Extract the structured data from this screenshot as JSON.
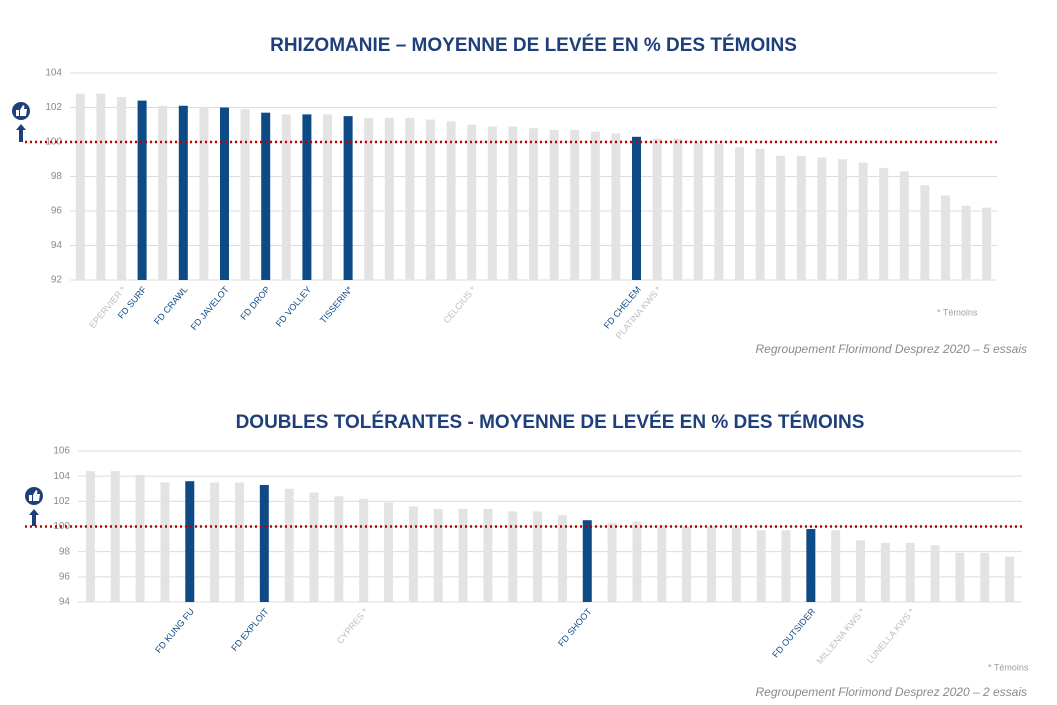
{
  "chart_data": [
    {
      "type": "bar",
      "title": "RHIZOMANIE – MOYENNE DE LEVÉE EN % DES TÉMOINS",
      "categories": [
        null,
        null,
        "EPERVIER *",
        "FD SURF",
        null,
        "FD CRAWL",
        null,
        "FD JAVELOT",
        null,
        "FD DROP",
        null,
        "FD VOLLEY",
        null,
        "TISSERIN*",
        null,
        null,
        null,
        null,
        null,
        "CELCIUS *",
        null,
        null,
        null,
        null,
        null,
        null,
        null,
        "FD CHELEM",
        "PLATINA KWS *",
        null,
        null,
        null,
        null,
        null,
        null,
        null,
        null,
        null,
        null,
        null,
        null,
        null,
        null,
        null,
        null
      ],
      "values": [
        102.8,
        102.8,
        102.6,
        102.4,
        102.1,
        102.1,
        102.0,
        102.0,
        101.9,
        101.7,
        101.6,
        101.6,
        101.6,
        101.5,
        101.4,
        101.4,
        101.4,
        101.3,
        101.2,
        101.0,
        100.9,
        100.9,
        100.8,
        100.7,
        100.7,
        100.6,
        100.5,
        100.3,
        100.2,
        100.2,
        100.0,
        99.9,
        99.7,
        99.6,
        99.2,
        99.2,
        99.1,
        99.0,
        98.8,
        98.5,
        98.3,
        97.5,
        96.9,
        96.3,
        96.2
      ],
      "colors": [
        "#e3e3e3",
        "#e3e3e3",
        "#e3e3e3",
        "#0e4a86",
        "#e3e3e3",
        "#0e4a86",
        "#e3e3e3",
        "#0e4a86",
        "#e3e3e3",
        "#0e4a86",
        "#e3e3e3",
        "#0e4a86",
        "#e3e3e3",
        "#0e4a86",
        "#e3e3e3",
        "#e3e3e3",
        "#e3e3e3",
        "#e3e3e3",
        "#e3e3e3",
        "#e3e3e3",
        "#e3e3e3",
        "#e3e3e3",
        "#e3e3e3",
        "#e3e3e3",
        "#e3e3e3",
        "#e3e3e3",
        "#e3e3e3",
        "#0e4a86",
        "#e3e3e3",
        "#e3e3e3",
        "#e3e3e3",
        "#e3e3e3",
        "#e3e3e3",
        "#e3e3e3",
        "#e3e3e3",
        "#e3e3e3",
        "#e3e3e3",
        "#e3e3e3",
        "#e3e3e3",
        "#e3e3e3",
        "#e3e3e3",
        "#e3e3e3",
        "#e3e3e3",
        "#e3e3e3",
        "#e3e3e3"
      ],
      "ylim": [
        92,
        104
      ],
      "yticks": [
        92,
        94,
        96,
        98,
        100,
        102,
        104
      ],
      "grid": true,
      "reference_line": {
        "value": 100,
        "color": "#c00000"
      },
      "note": "* Témoins",
      "source": "Regroupement Florimond Desprez 2020 – 5 essais"
    },
    {
      "type": "bar",
      "title": "DOUBLES TOLÉRANTES - MOYENNE DE LEVÉE EN % DES TÉMOINS",
      "categories": [
        null,
        null,
        null,
        null,
        "FD KUNG FU",
        null,
        null,
        "FD EXPLOIT",
        null,
        null,
        null,
        "CYPRES *",
        null,
        null,
        null,
        null,
        null,
        null,
        null,
        null,
        "FD SHOOT",
        null,
        null,
        null,
        null,
        null,
        null,
        null,
        null,
        "FD OUTSIDER",
        null,
        "MILLENIA KWS *",
        null,
        "LUNELLA KWS *",
        null,
        null,
        null,
        null
      ],
      "values": [
        104.4,
        104.4,
        104.1,
        103.5,
        103.6,
        103.5,
        103.5,
        103.3,
        103.0,
        102.7,
        102.4,
        102.2,
        101.9,
        101.6,
        101.4,
        101.4,
        101.4,
        101.2,
        101.2,
        100.9,
        100.5,
        100.3,
        100.4,
        100.1,
        100.0,
        100.0,
        99.9,
        99.7,
        99.7,
        99.8,
        99.7,
        98.9,
        98.7,
        98.7,
        98.5,
        97.9,
        97.9,
        97.6
      ],
      "colors": [
        "#e3e3e3",
        "#e3e3e3",
        "#e3e3e3",
        "#e3e3e3",
        "#0e4a86",
        "#e3e3e3",
        "#e3e3e3",
        "#0e4a86",
        "#e3e3e3",
        "#e3e3e3",
        "#e3e3e3",
        "#e3e3e3",
        "#e3e3e3",
        "#e3e3e3",
        "#e3e3e3",
        "#e3e3e3",
        "#e3e3e3",
        "#e3e3e3",
        "#e3e3e3",
        "#e3e3e3",
        "#0e4a86",
        "#e3e3e3",
        "#e3e3e3",
        "#e3e3e3",
        "#e3e3e3",
        "#e3e3e3",
        "#e3e3e3",
        "#e3e3e3",
        "#e3e3e3",
        "#0e4a86",
        "#e3e3e3",
        "#e3e3e3",
        "#e3e3e3",
        "#e3e3e3",
        "#e3e3e3",
        "#e3e3e3",
        "#e3e3e3",
        "#e3e3e3"
      ],
      "ylim": [
        94,
        106
      ],
      "yticks": [
        94,
        96,
        98,
        100,
        102,
        104,
        106
      ],
      "grid": true,
      "reference_line": {
        "value": 100,
        "color": "#c00000"
      },
      "note": "* Témoins",
      "source": "Regroupement Florimond Desprez 2020 – 2 essais"
    }
  ]
}
